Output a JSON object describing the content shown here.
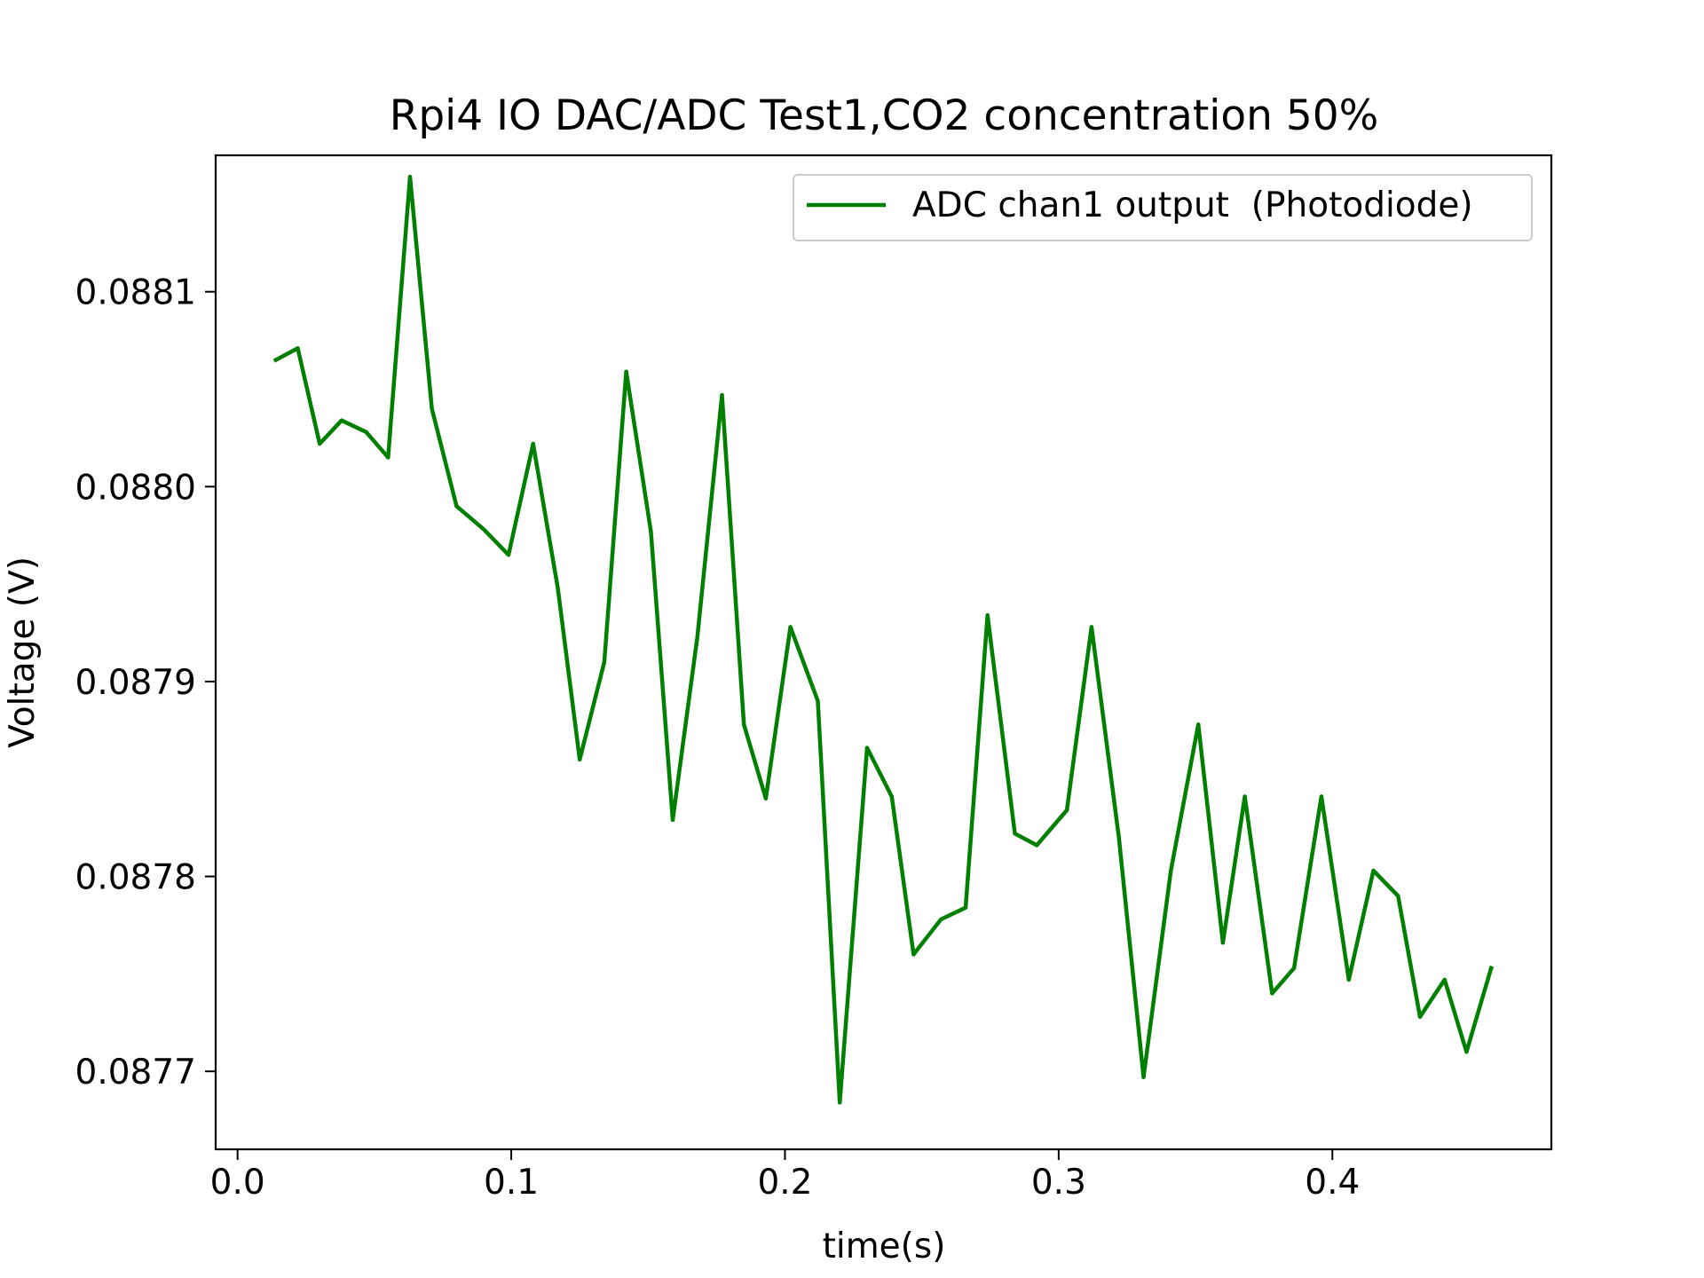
{
  "chart_data": {
    "type": "line",
    "title": "Rpi4 IO DAC/ADC Test1,CO2 concentration 50%",
    "xlabel": "time(s)",
    "ylabel": "Voltage (V)",
    "xlim": [
      -0.008,
      0.48
    ],
    "ylim": [
      0.08766,
      0.08817
    ],
    "xticks": [
      0.0,
      0.1,
      0.2,
      0.3,
      0.4
    ],
    "xtick_labels": [
      "0.0",
      "0.1",
      "0.2",
      "0.3",
      "0.4"
    ],
    "yticks": [
      0.0877,
      0.0878,
      0.0879,
      0.088,
      0.0881
    ],
    "ytick_labels": [
      "0.0877",
      "0.0878",
      "0.0879",
      "0.0880",
      "0.0881"
    ],
    "grid": false,
    "legend": "top-right",
    "series": [
      {
        "name": "ADC chan1 output  (Photodiode)",
        "color": "#008000",
        "x": [
          0.014,
          0.022,
          0.03,
          0.038,
          0.047,
          0.055,
          0.063,
          0.071,
          0.08,
          0.09,
          0.099,
          0.108,
          0.117,
          0.125,
          0.134,
          0.142,
          0.151,
          0.159,
          0.168,
          0.177,
          0.185,
          0.193,
          0.202,
          0.212,
          0.22,
          0.23,
          0.239,
          0.247,
          0.257,
          0.266,
          0.274,
          0.284,
          0.292,
          0.303,
          0.312,
          0.322,
          0.331,
          0.341,
          0.351,
          0.36,
          0.368,
          0.378,
          0.386,
          0.396,
          0.406,
          0.415,
          0.424,
          0.432,
          0.441,
          0.449,
          0.458
        ],
        "y": [
          0.088065,
          0.088071,
          0.088022,
          0.088034,
          0.088028,
          0.088015,
          0.088159,
          0.08804,
          0.08799,
          0.087978,
          0.087965,
          0.088022,
          0.087948,
          0.08786,
          0.08791,
          0.088059,
          0.087977,
          0.087829,
          0.087923,
          0.088047,
          0.087878,
          0.08784,
          0.087928,
          0.08789,
          0.087684,
          0.087866,
          0.087841,
          0.08776,
          0.087778,
          0.087784,
          0.087934,
          0.087822,
          0.087816,
          0.087834,
          0.087928,
          0.08782,
          0.087697,
          0.087803,
          0.087878,
          0.087766,
          0.087841,
          0.08774,
          0.087753,
          0.087841,
          0.087747,
          0.087803,
          0.08779,
          0.087728,
          0.087747,
          0.08771,
          0.087753
        ]
      }
    ]
  }
}
